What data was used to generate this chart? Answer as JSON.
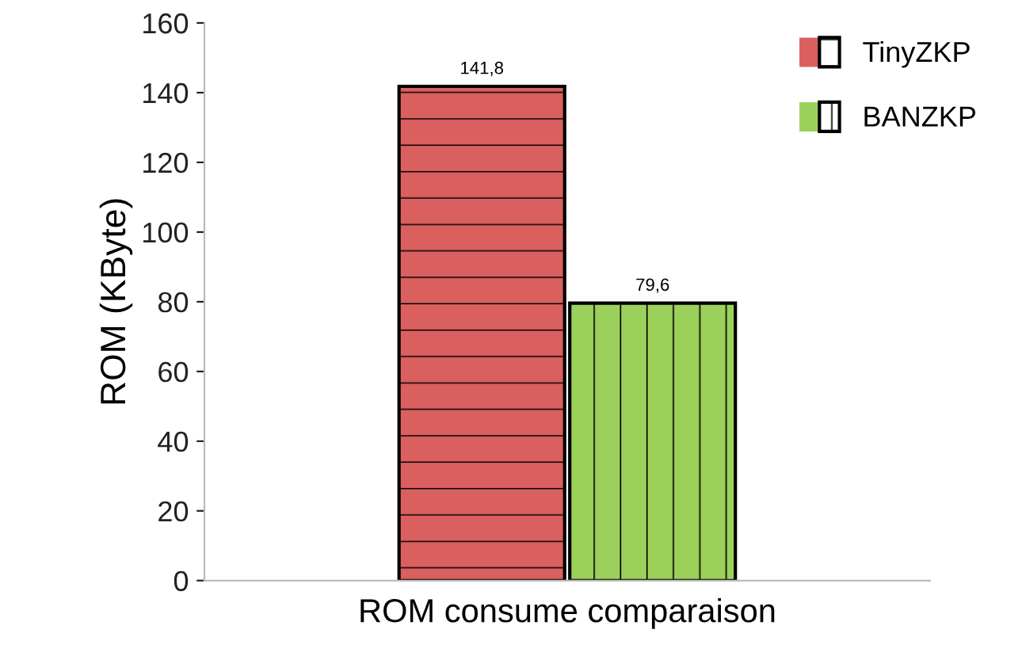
{
  "chart_data": {
    "type": "bar",
    "categories": [
      "ROM consume comparaison"
    ],
    "ylabel": "ROM (KByte)",
    "series": [
      {
        "name": "TinyZKP",
        "color": "#d9605f",
        "values": [
          141.8
        ],
        "value_labels": [
          "141,8"
        ]
      },
      {
        "name": "BANZKP",
        "color": "#9bd15a",
        "values": [
          79.6
        ],
        "value_labels": [
          "79,6"
        ]
      }
    ],
    "ylim": [
      0,
      160
    ],
    "yticks": [
      0,
      20,
      40,
      60,
      80,
      100,
      120,
      140,
      160
    ],
    "grid": false,
    "legend": "top right"
  }
}
